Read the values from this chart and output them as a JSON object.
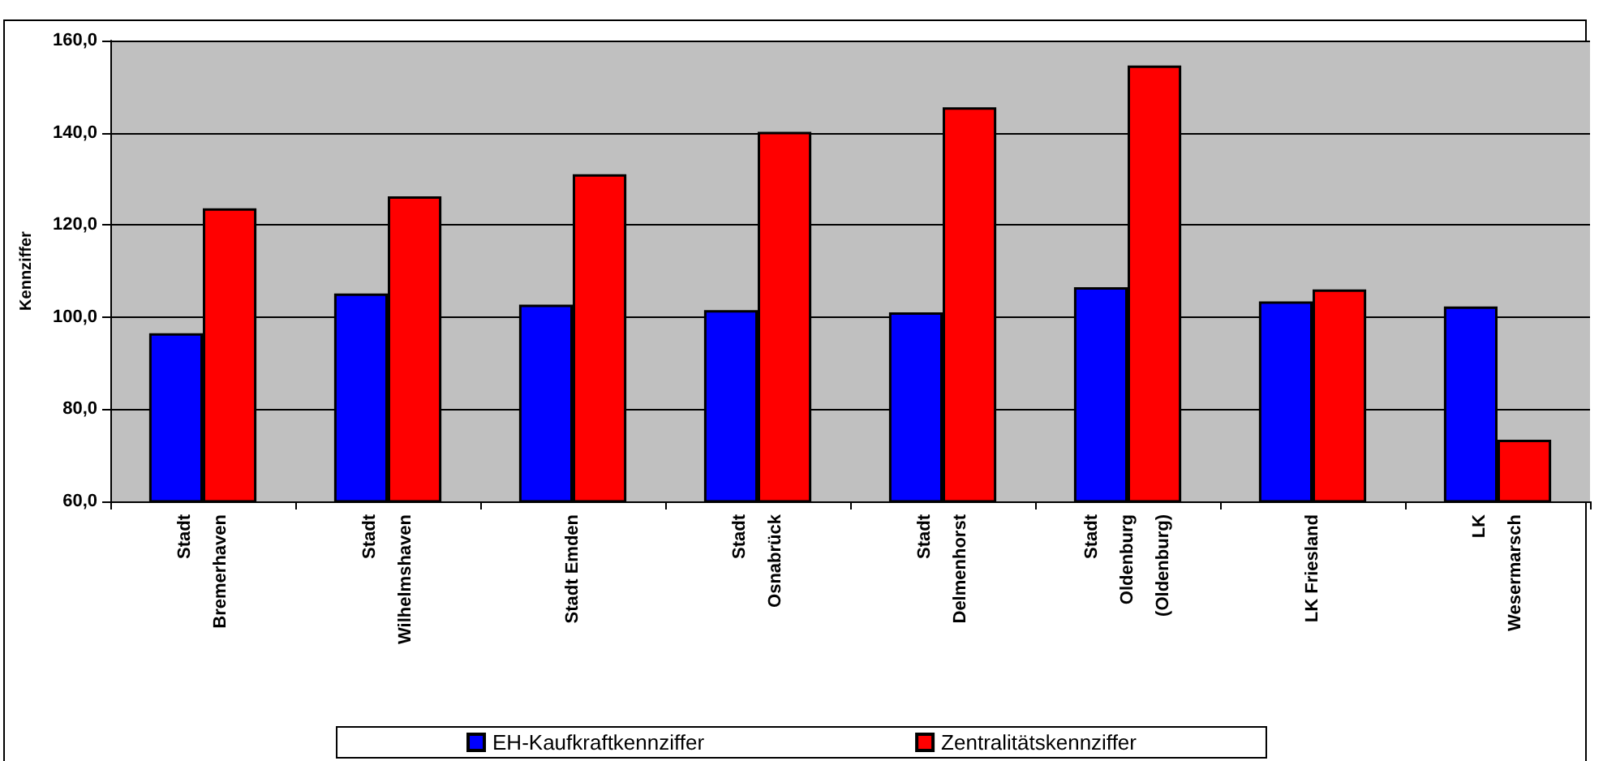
{
  "chart_data": {
    "type": "bar",
    "ylabel": "Kennziffer",
    "categories": [
      "Stadt\nBremerhaven",
      "Stadt\nWilhelmshaven",
      "Stadt Emden",
      "Stadt\nOsnabrück",
      "Stadt\nDelmenhorst",
      "Stadt\nOldenburg\n(Oldenburg)",
      "LK Friesland",
      "LK\nWesermarsch"
    ],
    "series": [
      {
        "name": "EH-Kaufkraftkennziffer",
        "color": "#0000ff",
        "values": [
          96.5,
          105.1,
          102.7,
          101.5,
          101.0,
          106.5,
          103.4,
          102.3
        ]
      },
      {
        "name": "Zentralitätskennziffer",
        "color": "#ff0000",
        "values": [
          123.6,
          126.2,
          131.0,
          140.2,
          145.5,
          154.6,
          106.0,
          73.4
        ]
      }
    ],
    "ylim": [
      60,
      160
    ],
    "yticks": [
      {
        "value": 60,
        "label": "60,0"
      },
      {
        "value": 80,
        "label": "80,0"
      },
      {
        "value": 100,
        "label": "100,0"
      },
      {
        "value": 120,
        "label": "120,0"
      },
      {
        "value": 140,
        "label": "140,0"
      },
      {
        "value": 160,
        "label": "160,0"
      }
    ],
    "grid": "y",
    "legend": "bottom"
  }
}
